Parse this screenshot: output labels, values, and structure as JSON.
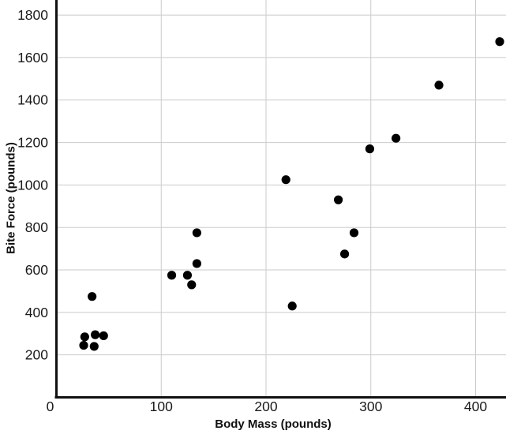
{
  "chart_data": {
    "type": "scatter",
    "title": "",
    "xlabel": "Body Mass (pounds)",
    "ylabel": "Bite Force (pounds)",
    "xlim": [
      0,
      429
    ],
    "ylim": [
      0,
      1871
    ],
    "x_ticks": [
      0,
      100,
      200,
      300,
      400
    ],
    "y_ticks": [
      200,
      400,
      600,
      800,
      1000,
      1200,
      1400,
      1600,
      1800
    ],
    "grid": true,
    "legend_position": "none",
    "point_color": "#000000",
    "grid_color": "#cbcbcb",
    "axis_color": "#111111",
    "background_color": "#ffffff",
    "points": [
      {
        "x": 26,
        "y": 245
      },
      {
        "x": 27,
        "y": 285
      },
      {
        "x": 36,
        "y": 240
      },
      {
        "x": 37,
        "y": 295
      },
      {
        "x": 45,
        "y": 290
      },
      {
        "x": 34,
        "y": 475
      },
      {
        "x": 110,
        "y": 575
      },
      {
        "x": 125,
        "y": 575
      },
      {
        "x": 129,
        "y": 530
      },
      {
        "x": 134,
        "y": 630
      },
      {
        "x": 134,
        "y": 775
      },
      {
        "x": 219,
        "y": 1025
      },
      {
        "x": 225,
        "y": 430
      },
      {
        "x": 269,
        "y": 930
      },
      {
        "x": 275,
        "y": 675
      },
      {
        "x": 284,
        "y": 775
      },
      {
        "x": 299,
        "y": 1170
      },
      {
        "x": 324,
        "y": 1220
      },
      {
        "x": 365,
        "y": 1470
      },
      {
        "x": 423,
        "y": 1675
      }
    ]
  }
}
